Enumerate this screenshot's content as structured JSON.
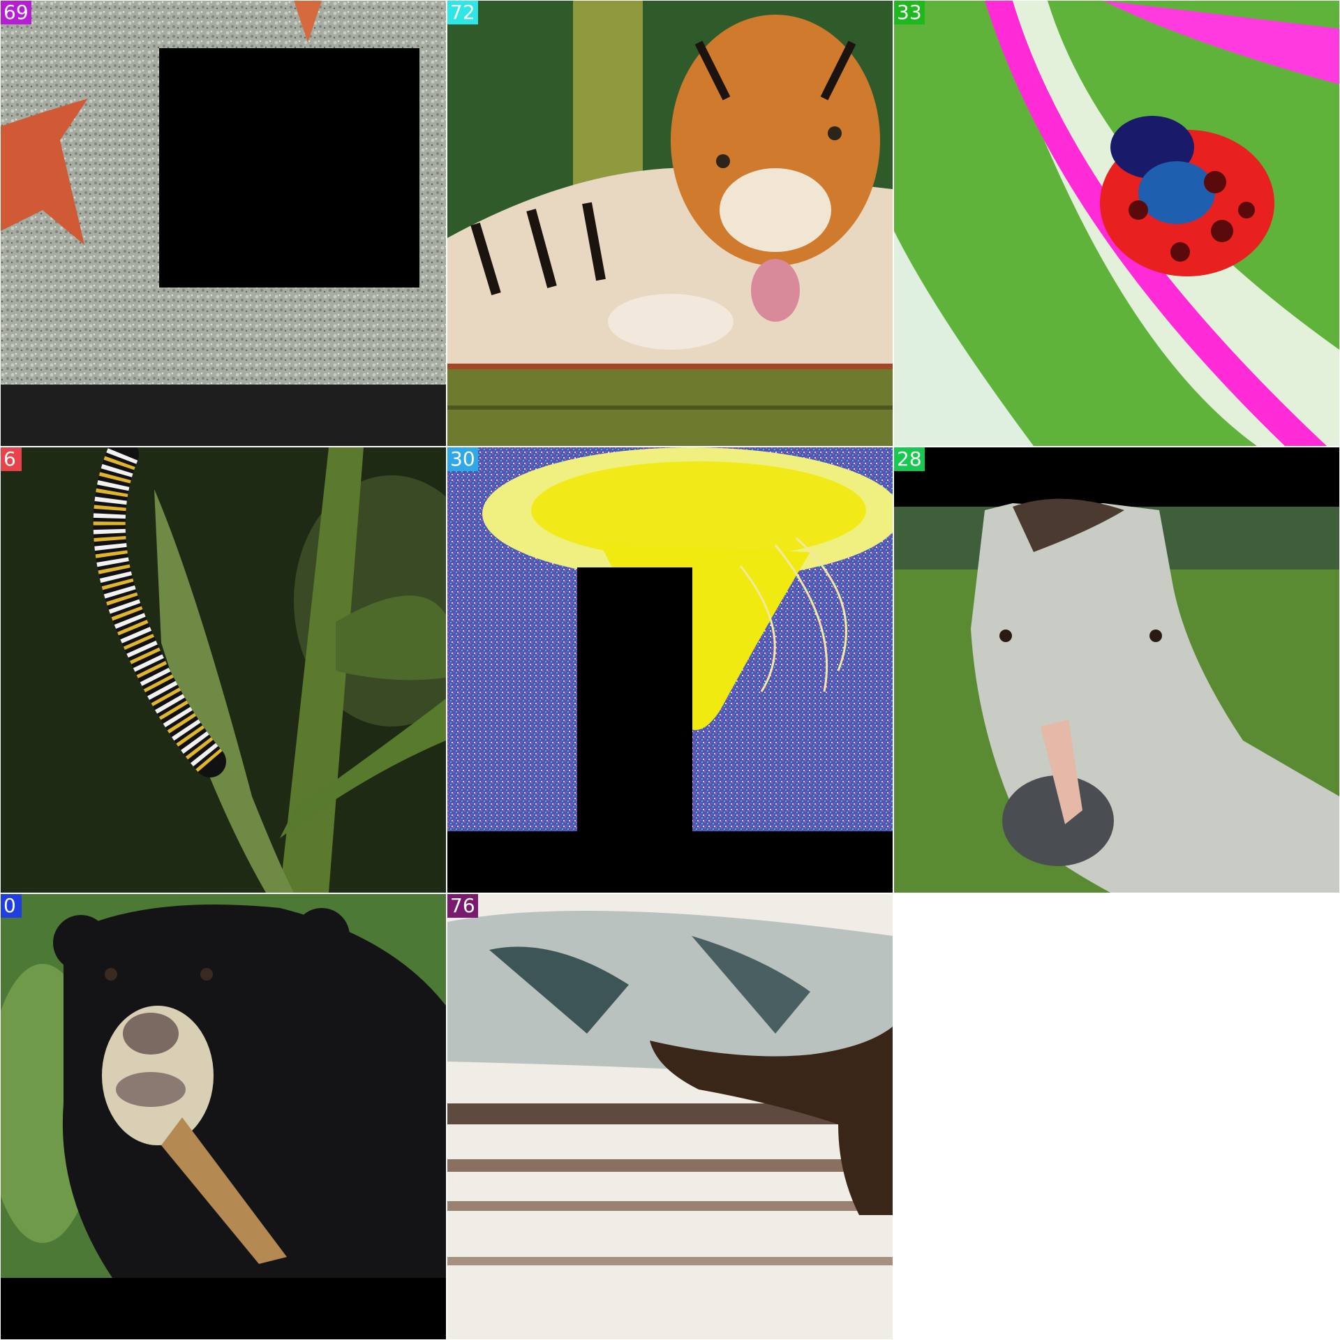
{
  "tiles": [
    {
      "label": "69",
      "label_color": "#b41fd6",
      "subject": "starfish on sand",
      "occlusion": "black square mask, dark bottom band"
    },
    {
      "label": "72",
      "label_color": "#2ee6e6",
      "subject": "tiger licking paw",
      "occlusion": "none"
    },
    {
      "label": "33",
      "label_color": "#1fb81f",
      "subject": "ladybug on leaf, posterized colors",
      "occlusion": "none"
    },
    {
      "label": "6",
      "label_color": "#e8434a",
      "subject": "striped caterpillar on plant stem",
      "occlusion": "none"
    },
    {
      "label": "30",
      "label_color": "#2fa7e8",
      "subject": "yellow jellyfish, noisy background",
      "occlusion": "black rectangle mask, black bottom band"
    },
    {
      "label": "28",
      "label_color": "#19c94f",
      "subject": "grey horse head in field",
      "occlusion": "black top band"
    },
    {
      "label": "0",
      "label_color": "#1f3fe0",
      "subject": "sun bear",
      "occlusion": "black bottom band"
    },
    {
      "label": "76",
      "label_color": "#7a1a6e",
      "subject": "whale tail above water, overexposed",
      "occlusion": "none"
    }
  ]
}
